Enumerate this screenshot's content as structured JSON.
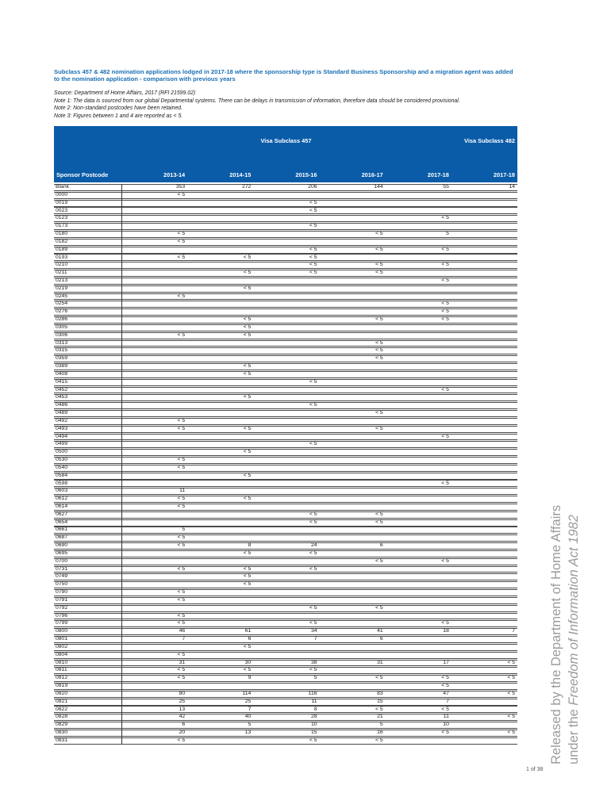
{
  "title": "Subclass 457 & 482 nomination applications lodged in 2017-18 where the sponsorship type is Standard Business Sponsorship and a migration agent was added to the nomination application - comparison with previous years",
  "source": "Source: Department of Home Affairs, 2017 (RFI 21599.02)",
  "notes": [
    "Note 1: The data is sourced from our global Departmental systems. There can be delays in transmission of information, therefore data should be considered provisional.",
    "Note 2: Non-standard postcodes have been retained.",
    "Note 3: Figures between 1 and 4 are reported as < 5."
  ],
  "watermark": {
    "line1": "Released by the Department of Home Affairs",
    "line2_prefix": "under the ",
    "line2_italic": "Freedom of Information Act 1982"
  },
  "page": {
    "number_label": "1 of 38"
  },
  "colors": {
    "header_bg": "#0a5ca8",
    "title_blue": "#1a6fb5",
    "watermark_gray": "#9b9b9b"
  },
  "table": {
    "group_headers": {
      "visa457": "Visa Subclass 457",
      "visa482": "Visa Subclass 482"
    },
    "columns": [
      "Sponsor Postcode",
      "2013-14",
      "2014-15",
      "2015-16",
      "2016-17",
      "2017-18",
      "2017-18"
    ],
    "rows": [
      {
        "postcode": "Blank",
        "values": [
          "353",
          "272",
          "206",
          "144",
          "55",
          "14"
        ]
      },
      {
        "postcode": "0000",
        "values": [
          "< 5",
          "",
          "",
          "",
          "",
          ""
        ]
      },
      {
        "postcode": "0019",
        "values": [
          "",
          "",
          "< 5",
          "",
          "",
          ""
        ]
      },
      {
        "postcode": "0023",
        "values": [
          "",
          "",
          "< 5",
          "",
          "",
          ""
        ]
      },
      {
        "postcode": "0123",
        "values": [
          "",
          "",
          "",
          "",
          "< 5",
          ""
        ]
      },
      {
        "postcode": "0173",
        "values": [
          "",
          "",
          "< 5",
          "",
          "",
          ""
        ]
      },
      {
        "postcode": "0180",
        "values": [
          "< 5",
          "",
          "",
          "< 5",
          "5",
          ""
        ]
      },
      {
        "postcode": "0182",
        "values": [
          "< 5",
          "",
          "",
          "",
          "",
          ""
        ]
      },
      {
        "postcode": "0189",
        "values": [
          "",
          "",
          "< 5",
          "< 5",
          "< 5",
          ""
        ]
      },
      {
        "postcode": "0193",
        "values": [
          "< 5",
          "< 5",
          "< 5",
          "",
          "",
          ""
        ]
      },
      {
        "postcode": "0210",
        "values": [
          "",
          "",
          "< 5",
          "< 5",
          "< 5",
          ""
        ]
      },
      {
        "postcode": "0211",
        "values": [
          "",
          "< 5",
          "< 5",
          "< 5",
          "",
          ""
        ]
      },
      {
        "postcode": "0213",
        "values": [
          "",
          "",
          "",
          "",
          "< 5",
          ""
        ]
      },
      {
        "postcode": "0219",
        "values": [
          "",
          "< 5",
          "",
          "",
          "",
          ""
        ]
      },
      {
        "postcode": "0245",
        "values": [
          "< 5",
          "",
          "",
          "",
          "",
          ""
        ]
      },
      {
        "postcode": "0254",
        "values": [
          "",
          "",
          "",
          "",
          "< 5",
          ""
        ]
      },
      {
        "postcode": "0276",
        "values": [
          "",
          "",
          "",
          "",
          "< 5",
          ""
        ]
      },
      {
        "postcode": "0286",
        "values": [
          "",
          "< 5",
          "",
          "< 5",
          "< 5",
          ""
        ]
      },
      {
        "postcode": "0305",
        "values": [
          "",
          "< 5",
          "",
          "",
          "",
          ""
        ]
      },
      {
        "postcode": "0306",
        "values": [
          "< 5",
          "< 5",
          "",
          "",
          "",
          ""
        ]
      },
      {
        "postcode": "0313",
        "values": [
          "",
          "",
          "",
          "< 5",
          "",
          ""
        ]
      },
      {
        "postcode": "0315",
        "values": [
          "",
          "",
          "",
          "< 5",
          "",
          ""
        ]
      },
      {
        "postcode": "0359",
        "values": [
          "",
          "",
          "",
          "< 5",
          "",
          ""
        ]
      },
      {
        "postcode": "0389",
        "values": [
          "",
          "< 5",
          "",
          "",
          "",
          ""
        ]
      },
      {
        "postcode": "0408",
        "values": [
          "",
          "< 5",
          "",
          "",
          "",
          ""
        ]
      },
      {
        "postcode": "0415",
        "values": [
          "",
          "",
          "< 5",
          "",
          "",
          ""
        ]
      },
      {
        "postcode": "0452",
        "values": [
          "",
          "",
          "",
          "",
          "< 5",
          ""
        ]
      },
      {
        "postcode": "0453",
        "values": [
          "",
          "< 5",
          "",
          "",
          "",
          ""
        ]
      },
      {
        "postcode": "0486",
        "values": [
          "",
          "",
          "< 5",
          "",
          "",
          ""
        ]
      },
      {
        "postcode": "0489",
        "values": [
          "",
          "",
          "",
          "< 5",
          "",
          ""
        ]
      },
      {
        "postcode": "0492",
        "values": [
          "< 5",
          "",
          "",
          "",
          "",
          ""
        ]
      },
      {
        "postcode": "0493",
        "values": [
          "< 5",
          "< 5",
          "",
          "< 5",
          "",
          ""
        ]
      },
      {
        "postcode": "0494",
        "values": [
          "",
          "",
          "",
          "",
          "< 5",
          ""
        ]
      },
      {
        "postcode": "0499",
        "values": [
          "",
          "",
          "< 5",
          "",
          "",
          ""
        ]
      },
      {
        "postcode": "0500",
        "values": [
          "",
          "< 5",
          "",
          "",
          "",
          ""
        ]
      },
      {
        "postcode": "0530",
        "values": [
          "< 5",
          "",
          "",
          "",
          "",
          ""
        ]
      },
      {
        "postcode": "0540",
        "values": [
          "< 5",
          "",
          "",
          "",
          "",
          ""
        ]
      },
      {
        "postcode": "0584",
        "values": [
          "",
          "< 5",
          "",
          "",
          "",
          ""
        ]
      },
      {
        "postcode": "0598",
        "values": [
          "",
          "",
          "",
          "",
          "< 5",
          ""
        ]
      },
      {
        "postcode": "0603",
        "values": [
          "11",
          "",
          "",
          "",
          "",
          ""
        ]
      },
      {
        "postcode": "0612",
        "values": [
          "< 5",
          "< 5",
          "",
          "",
          "",
          ""
        ]
      },
      {
        "postcode": "0614",
        "values": [
          "< 5",
          "",
          "",
          "",
          "",
          ""
        ]
      },
      {
        "postcode": "0627",
        "values": [
          "",
          "",
          "< 5",
          "< 5",
          "",
          ""
        ]
      },
      {
        "postcode": "0654",
        "values": [
          "",
          "",
          "< 5",
          "< 5",
          "",
          ""
        ]
      },
      {
        "postcode": "0661",
        "values": [
          "5",
          "",
          "",
          "",
          "",
          ""
        ]
      },
      {
        "postcode": "0687",
        "values": [
          "< 5",
          "",
          "",
          "",
          "",
          ""
        ]
      },
      {
        "postcode": "0690",
        "values": [
          "< 5",
          "8",
          "24",
          "6",
          "",
          ""
        ]
      },
      {
        "postcode": "0695",
        "values": [
          "",
          "< 5",
          "< 5",
          "",
          "",
          ""
        ]
      },
      {
        "postcode": "0700",
        "values": [
          "",
          "",
          "",
          "< 5",
          "< 5",
          ""
        ]
      },
      {
        "postcode": "0731",
        "values": [
          "< 5",
          "< 5",
          "< 5",
          "",
          "",
          ""
        ]
      },
      {
        "postcode": "0749",
        "values": [
          "",
          "< 5",
          "",
          "",
          "",
          ""
        ]
      },
      {
        "postcode": "0750",
        "values": [
          "",
          "< 5",
          "",
          "",
          "",
          ""
        ]
      },
      {
        "postcode": "0790",
        "values": [
          "< 5",
          "",
          "",
          "",
          "",
          ""
        ]
      },
      {
        "postcode": "0791",
        "values": [
          "< 5",
          "",
          "",
          "",
          "",
          ""
        ]
      },
      {
        "postcode": "0792",
        "values": [
          "",
          "",
          "< 5",
          "< 5",
          "",
          ""
        ]
      },
      {
        "postcode": "0796",
        "values": [
          "< 5",
          "",
          "",
          "",
          "",
          ""
        ]
      },
      {
        "postcode": "0799",
        "values": [
          "< 5",
          "",
          "< 5",
          "",
          "< 5",
          ""
        ]
      },
      {
        "postcode": "0800",
        "values": [
          "46",
          "61",
          "34",
          "41",
          "18",
          "7"
        ]
      },
      {
        "postcode": "0801",
        "values": [
          "7",
          "6",
          "7",
          "6",
          "",
          ""
        ]
      },
      {
        "postcode": "0802",
        "values": [
          "",
          "< 5",
          "",
          "",
          "",
          ""
        ]
      },
      {
        "postcode": "0804",
        "values": [
          "< 5",
          "",
          "",
          "",
          "",
          ""
        ]
      },
      {
        "postcode": "0810",
        "values": [
          "31",
          "30",
          "38",
          "31",
          "17",
          "< 5"
        ]
      },
      {
        "postcode": "0811",
        "values": [
          "< 5",
          "< 5",
          "< 5",
          "",
          "",
          ""
        ]
      },
      {
        "postcode": "0812",
        "values": [
          "< 5",
          "9",
          "5",
          "< 5",
          "< 5",
          "< 5"
        ]
      },
      {
        "postcode": "0819",
        "values": [
          "",
          "",
          "",
          "",
          "< 5",
          ""
        ]
      },
      {
        "postcode": "0820",
        "values": [
          "80",
          "114",
          "116",
          "83",
          "47",
          "< 5"
        ]
      },
      {
        "postcode": "0821",
        "values": [
          "25",
          "25",
          "11",
          "15",
          "7",
          ""
        ]
      },
      {
        "postcode": "0822",
        "values": [
          "13",
          "7",
          "8",
          "< 5",
          "< 5",
          ""
        ]
      },
      {
        "postcode": "0828",
        "values": [
          "42",
          "40",
          "28",
          "21",
          "11",
          "< 5"
        ]
      },
      {
        "postcode": "0829",
        "values": [
          "6",
          "5",
          "10",
          "5",
          "10",
          ""
        ]
      },
      {
        "postcode": "0830",
        "values": [
          "20",
          "13",
          "15",
          "16",
          "< 5",
          "< 5"
        ]
      },
      {
        "postcode": "0831",
        "values": [
          "< 5",
          "",
          "< 5",
          "< 5",
          "",
          ""
        ]
      }
    ]
  }
}
